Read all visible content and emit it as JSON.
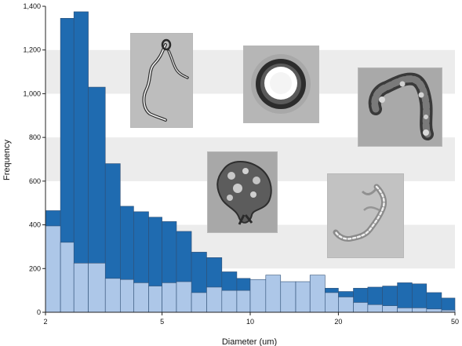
{
  "chart_data": {
    "type": "bar",
    "title": "",
    "xlabel": "Diameter (um)",
    "ylabel": "Frequency",
    "x_scale": "log",
    "xlim": [
      2,
      50
    ],
    "ylim": [
      0,
      1400
    ],
    "x_ticks": [
      2,
      5,
      10,
      20,
      50
    ],
    "x_tick_labels": [
      "2",
      "5",
      "10",
      "20",
      "50"
    ],
    "y_ticks": [
      0,
      200,
      400,
      600,
      800,
      1000,
      1200,
      1400
    ],
    "y_tick_labels": [
      "0",
      "200",
      "400",
      "600",
      "800",
      "1,000",
      "1,200",
      "1,400"
    ],
    "grid": "horizontal bands",
    "legend": "none",
    "bins": [
      [
        2.0,
        2.25
      ],
      [
        2.25,
        2.5
      ],
      [
        2.5,
        2.8
      ],
      [
        2.8,
        3.2
      ],
      [
        3.2,
        3.6
      ],
      [
        3.6,
        4.0
      ],
      [
        4.0,
        4.5
      ],
      [
        4.5,
        5.0
      ],
      [
        5.0,
        5.6
      ],
      [
        5.6,
        6.3
      ],
      [
        6.3,
        7.1
      ],
      [
        7.1,
        8.0
      ],
      [
        8.0,
        9.0
      ],
      [
        9.0,
        10.0
      ],
      [
        10.0,
        11.3
      ],
      [
        11.3,
        12.7
      ],
      [
        12.7,
        14.3
      ],
      [
        14.3,
        16.0
      ],
      [
        16.0,
        18.0
      ],
      [
        18.0,
        20.0
      ],
      [
        20.0,
        22.5
      ],
      [
        22.5,
        25.2
      ],
      [
        25.2,
        28.3
      ],
      [
        28.3,
        31.8
      ],
      [
        31.8,
        35.7
      ],
      [
        35.7,
        40.0
      ],
      [
        40.0,
        45.0
      ],
      [
        45.0,
        50.0
      ]
    ],
    "series": [
      {
        "color": "#1f6bb0",
        "values": [
          465,
          1345,
          1375,
          1030,
          680,
          485,
          460,
          435,
          415,
          370,
          275,
          250,
          185,
          155,
          0,
          0,
          0,
          0,
          75,
          110,
          95,
          110,
          115,
          120,
          135,
          130,
          90,
          65
        ]
      },
      {
        "color": "#adc7e8",
        "values": [
          395,
          320,
          225,
          225,
          155,
          150,
          135,
          120,
          135,
          140,
          90,
          115,
          100,
          100,
          150,
          170,
          140,
          140,
          170,
          90,
          70,
          45,
          35,
          30,
          20,
          20,
          15,
          10
        ]
      }
    ],
    "colors": {
      "band": "#ececec",
      "bar_edge": "#2f4f75",
      "axis": "#222222"
    }
  },
  "insets": [
    {
      "name": "inset-filament-cell",
      "tone": "#bdbdbd"
    },
    {
      "name": "inset-round-bead",
      "tone": "#b6b6b6"
    },
    {
      "name": "inset-chain-aggregate",
      "tone": "#a9a9a9"
    },
    {
      "name": "inset-clumped-aggregate",
      "tone": "#a8a8a8"
    },
    {
      "name": "inset-faint-fragment",
      "tone": "#c2c2c2"
    }
  ]
}
